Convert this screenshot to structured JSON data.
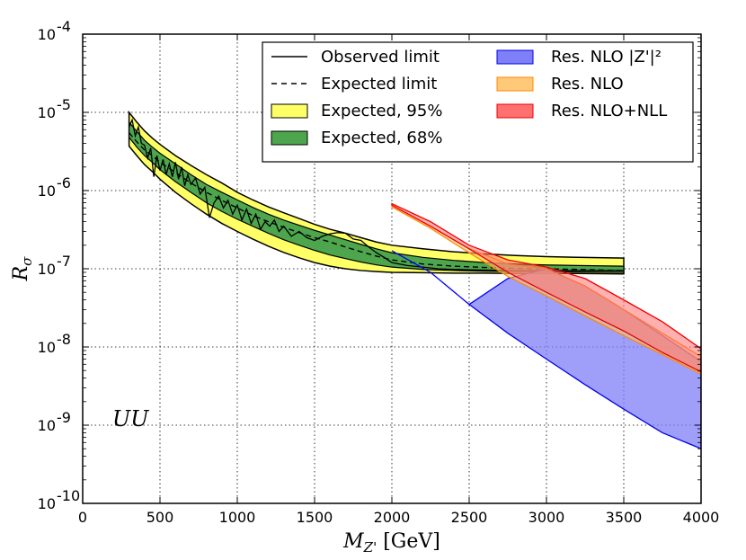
{
  "chart_data": {
    "type": "line",
    "scale": {
      "x": "linear",
      "y": "log10"
    },
    "xlabel": "M_Z' [GeV]",
    "ylabel": "R_σ",
    "xlim": [
      0,
      4000
    ],
    "ylim": [
      1e-10,
      0.0001
    ],
    "grid": true,
    "legend_position": "top-right",
    "x_ticks": [
      0,
      500,
      1000,
      1500,
      2000,
      2500,
      3000,
      3500,
      4000
    ],
    "y_ticks": [
      -10,
      -9,
      -8,
      -7,
      -6,
      -5,
      -4
    ],
    "y_tick_labels": [
      "10-10",
      "10-9",
      "10-8",
      "10-7",
      "10-6",
      "10-5",
      "10-4"
    ],
    "annotation": "UU",
    "colors": {
      "yellow": "#ffff66",
      "green": "#4da64d",
      "blue": "#7f7ff7",
      "orange": "#ffc97a",
      "red": "#ff7070",
      "blue_edge": "#0000ee",
      "red_edge": "#ee0000",
      "orange_edge": "#ff8800"
    },
    "legend": [
      {
        "key": "observed",
        "label": "Observed limit",
        "style": "solid-line"
      },
      {
        "key": "expected",
        "label": "Expected limit",
        "style": "dashed-line"
      },
      {
        "key": "band95",
        "label": "Expected, 95%",
        "style": "yellow-patch"
      },
      {
        "key": "band68",
        "label": "Expected, 68%",
        "style": "green-patch"
      },
      {
        "key": "nlo_z2",
        "label": "Res. NLO |Z'|²",
        "style": "blue-patch"
      },
      {
        "key": "nlo",
        "label": "Res. NLO",
        "style": "orange-patch"
      },
      {
        "key": "nlonll",
        "label": "Res. NLO+NLL",
        "style": "red-patch"
      }
    ],
    "series": {
      "expected": {
        "x": [
          300,
          350,
          400,
          450,
          500,
          600,
          700,
          800,
          900,
          1000,
          1100,
          1200,
          1300,
          1400,
          1500,
          1600,
          1700,
          1800,
          1900,
          2000,
          2200,
          2400,
          2600,
          2800,
          3000,
          3200,
          3500
        ],
        "y": [
          5.5e-06,
          4.2e-06,
          3.3e-06,
          2.8e-06,
          2.3e-06,
          1.7e-06,
          1.25e-06,
          9.5e-07,
          7.5e-07,
          6e-07,
          4.8e-07,
          4e-07,
          3.4e-07,
          2.9e-07,
          2.5e-07,
          2.2e-07,
          1.9e-07,
          1.65e-07,
          1.45e-07,
          1.3e-07,
          1.15e-07,
          1.08e-07,
          1.04e-07,
          1.01e-07,
          1e-07,
          9.8e-08,
          9.5e-08
        ]
      },
      "band95_upper": {
        "x": [
          300,
          350,
          400,
          450,
          500,
          600,
          700,
          800,
          900,
          1000,
          1100,
          1200,
          1300,
          1400,
          1500,
          1600,
          1700,
          1800,
          1900,
          2000,
          2200,
          2400,
          2600,
          2800,
          3000,
          3200,
          3500
        ],
        "y": [
          1e-05,
          7.5e-06,
          5.8e-06,
          4.7e-06,
          3.9e-06,
          2.8e-06,
          2.1e-06,
          1.6e-06,
          1.25e-06,
          9.5e-07,
          7.6e-07,
          6.2e-07,
          5.2e-07,
          4.4e-07,
          3.7e-07,
          3.2e-07,
          2.85e-07,
          2.5e-07,
          2.2e-07,
          2e-07,
          1.8e-07,
          1.65e-07,
          1.55e-07,
          1.48e-07,
          1.43e-07,
          1.4e-07,
          1.37e-07
        ]
      },
      "band95_lower": {
        "x": [
          300,
          350,
          400,
          450,
          500,
          600,
          700,
          800,
          900,
          1000,
          1100,
          1200,
          1300,
          1400,
          1500,
          1600,
          1700,
          1800,
          1900,
          2000,
          2200,
          2400,
          2600,
          2800,
          3000,
          3200,
          3500
        ],
        "y": [
          3.7e-06,
          2.8e-06,
          2.15e-06,
          1.75e-06,
          1.4e-06,
          9.5e-07,
          6.8e-07,
          5e-07,
          3.8e-07,
          3e-07,
          2.4e-07,
          1.95e-07,
          1.62e-07,
          1.38e-07,
          1.2e-07,
          1.08e-07,
          1e-07,
          9.5e-08,
          9.2e-08,
          9e-08,
          8.9e-08,
          8.8e-08,
          8.8e-08,
          8.7e-08,
          8.7e-08,
          8.7e-08,
          8.6e-08
        ]
      },
      "band68_upper": {
        "x": [
          300,
          350,
          400,
          450,
          500,
          600,
          700,
          800,
          900,
          1000,
          1100,
          1200,
          1300,
          1400,
          1500,
          1600,
          1700,
          1800,
          1900,
          2000,
          2200,
          2400,
          2600,
          2800,
          3000,
          3200,
          3500
        ],
        "y": [
          7.5e-06,
          5.7e-06,
          4.4e-06,
          3.6e-06,
          3e-06,
          2.2e-06,
          1.6e-06,
          1.2e-06,
          9.5e-07,
          7.6e-07,
          6.1e-07,
          5e-07,
          4.2e-07,
          3.6e-07,
          3.1e-07,
          2.7e-07,
          2.35e-07,
          2.05e-07,
          1.8e-07,
          1.6e-07,
          1.4e-07,
          1.28e-07,
          1.2e-07,
          1.15e-07,
          1.12e-07,
          1.1e-07,
          1.08e-07
        ]
      },
      "band68_lower": {
        "x": [
          300,
          350,
          400,
          450,
          500,
          600,
          700,
          800,
          900,
          1000,
          1100,
          1200,
          1300,
          1400,
          1500,
          1600,
          1700,
          1800,
          1900,
          2000,
          2200,
          2400,
          2600,
          2800,
          3000,
          3200,
          3500
        ],
        "y": [
          4.8e-06,
          3.6e-06,
          2.8e-06,
          2.3e-06,
          1.85e-06,
          1.3e-06,
          9.5e-07,
          7e-07,
          5.4e-07,
          4.3e-07,
          3.5e-07,
          2.85e-07,
          2.35e-07,
          2e-07,
          1.72e-07,
          1.5e-07,
          1.35e-07,
          1.22e-07,
          1.12e-07,
          1.05e-07,
          9.8e-08,
          9.5e-08,
          9.3e-08,
          9.2e-08,
          9.2e-08,
          9.1e-08,
          9e-08
        ]
      },
      "observed": {
        "x": [
          300,
          320,
          340,
          360,
          380,
          400,
          420,
          440,
          460,
          480,
          500,
          520,
          540,
          560,
          580,
          600,
          620,
          640,
          660,
          680,
          700,
          730,
          760,
          790,
          820,
          850,
          880,
          910,
          940,
          970,
          1000,
          1030,
          1060,
          1090,
          1120,
          1150,
          1180,
          1210,
          1240,
          1270,
          1300,
          1350,
          1400,
          1450,
          1500,
          1550,
          1600,
          1650,
          1700,
          1750,
          1800,
          1850,
          1900,
          1950,
          2000,
          2100,
          2200,
          2300,
          2400,
          2500,
          2600,
          2800,
          3000,
          3200,
          3500
        ],
        "y": [
          6.5e-06,
          8e-06,
          5e-06,
          6.5e-06,
          4e-06,
          3.8e-06,
          2.6e-06,
          3.5e-06,
          1.5e-06,
          2.8e-06,
          1.8e-06,
          2.5e-06,
          1.6e-06,
          2.2e-06,
          1.5e-06,
          2.3e-06,
          1.4e-06,
          2e-06,
          1.15e-06,
          1.6e-06,
          1.2e-06,
          1.45e-06,
          9e-07,
          1.1e-06,
          4.5e-07,
          7e-07,
          8.5e-07,
          6e-07,
          7.5e-07,
          5e-07,
          6.5e-07,
          4.2e-07,
          5.8e-07,
          3.8e-07,
          5e-07,
          3.2e-07,
          4e-07,
          3.5e-07,
          4.2e-07,
          3e-07,
          3.5e-07,
          2.6e-07,
          3e-07,
          2.5e-07,
          2.3e-07,
          2.6e-07,
          2.8e-07,
          2.9e-07,
          2.85e-07,
          2.4e-07,
          2.3e-07,
          1.9e-07,
          1.6e-07,
          1.4e-07,
          1.2e-07,
          1.1e-07,
          1.05e-07,
          1e-07,
          9.8e-08,
          9.7e-08,
          9.6e-08,
          9.5e-08,
          9.5e-08,
          9.5e-08,
          9.5e-08
        ]
      },
      "nlo_z2": {
        "upper": {
          "x": [
            2000,
            2250,
            2500,
            2750,
            3000,
            3250,
            3500,
            3750,
            4000
          ],
          "y": [
            1.7e-07,
            9e-08,
            3.5e-08,
            7.5e-08,
            1e-07,
            6e-08,
            3e-08,
            1.4e-08,
            6.5e-09
          ]
        },
        "lower": {
          "x": [
            2000,
            2250,
            2500,
            2750,
            3000,
            3250,
            3500,
            3750,
            4000
          ],
          "y": [
            1.7e-07,
            9e-08,
            3.5e-08,
            1.5e-08,
            7e-09,
            3.3e-09,
            1.6e-09,
            8e-10,
            5e-10
          ]
        }
      },
      "nlo": {
        "upper": {
          "x": [
            2000,
            2250,
            2500,
            2750,
            3000,
            3250,
            3500,
            3750,
            4000
          ],
          "y": [
            6.5e-07,
            3.5e-07,
            1.8e-07,
            1.15e-07,
            1e-07,
            6e-08,
            3e-08,
            1.5e-08,
            7.5e-09
          ]
        },
        "lower": {
          "x": [
            2000,
            2250,
            2500,
            2750,
            3000,
            3250,
            3500,
            3750,
            4000
          ],
          "y": [
            6.2e-07,
            3.3e-07,
            1.6e-07,
            8e-08,
            4.5e-08,
            2.5e-08,
            1.4e-08,
            8e-09,
            4.5e-09
          ]
        }
      },
      "nlonll": {
        "upper": {
          "x": [
            2000,
            2250,
            2500,
            2750,
            3000,
            3250,
            3500,
            3750,
            4000
          ],
          "y": [
            6.8e-07,
            4e-07,
            2e-07,
            1.3e-07,
            1.05e-07,
            7.5e-08,
            4e-08,
            2.1e-08,
            9.5e-09
          ]
        },
        "lower": {
          "x": [
            2000,
            2250,
            2500,
            2750,
            3000,
            3250,
            3500,
            3750,
            4000
          ],
          "y": [
            6.5e-07,
            3.5e-07,
            1.8e-07,
            9e-08,
            5e-08,
            2.8e-08,
            1.6e-08,
            8.5e-09,
            4.8e-09
          ]
        }
      }
    }
  }
}
